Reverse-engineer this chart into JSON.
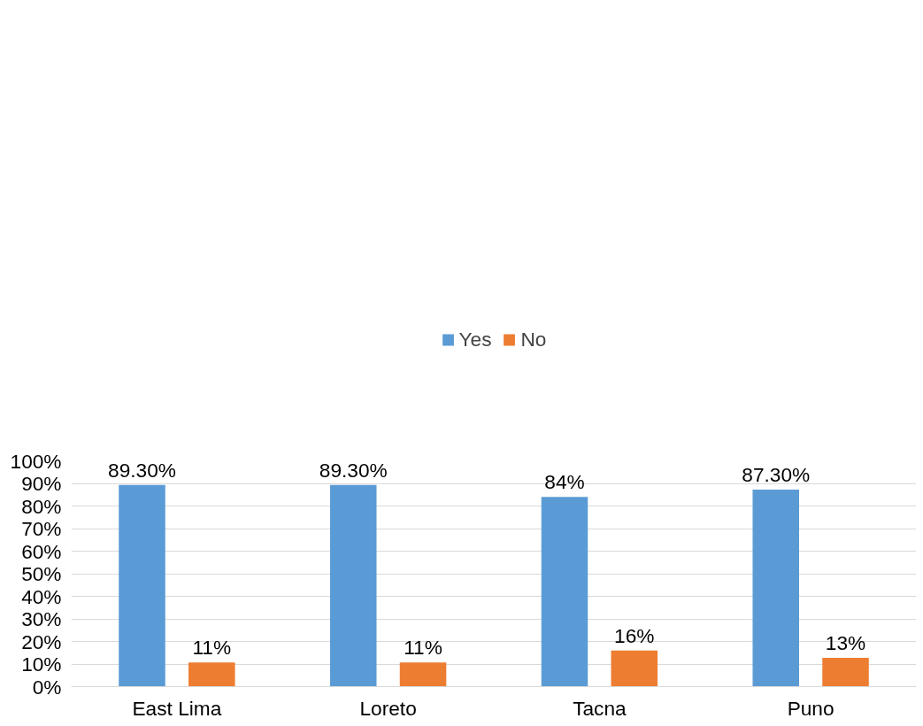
{
  "chart_data": {
    "type": "bar",
    "categories": [
      "East Lima",
      "Loreto",
      "Tacna",
      "Puno"
    ],
    "series": [
      {
        "name": "Yes",
        "color": "#5b9bd5",
        "values": [
          89.3,
          89.3,
          84,
          87.3
        ],
        "value_labels": [
          "89.30%",
          "89.30%",
          "84%",
          "87.30%"
        ]
      },
      {
        "name": "No",
        "color": "#ed7d31",
        "values": [
          10.7,
          10.7,
          16,
          12.7
        ],
        "value_labels": [
          "11%",
          "11%",
          "16%",
          "13%"
        ]
      }
    ],
    "ylim": [
      0,
      100
    ],
    "yticks": [
      {
        "value": 0,
        "label": "0%"
      },
      {
        "value": 10,
        "label": "10%"
      },
      {
        "value": 20,
        "label": "20%"
      },
      {
        "value": 30,
        "label": "30%"
      },
      {
        "value": 40,
        "label": "40%"
      },
      {
        "value": 50,
        "label": "50%"
      },
      {
        "value": 60,
        "label": "60%"
      },
      {
        "value": 70,
        "label": "70%"
      },
      {
        "value": 80,
        "label": "80%"
      },
      {
        "value": 90,
        "label": "90%"
      },
      {
        "value": 100,
        "label": "100%"
      }
    ],
    "grid": "y",
    "legend": "top"
  }
}
